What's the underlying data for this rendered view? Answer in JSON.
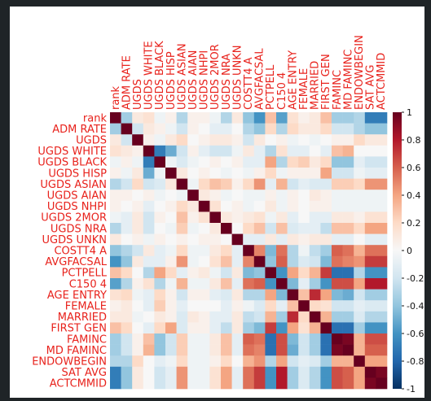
{
  "chart_data": {
    "type": "heatmap",
    "variables": [
      "rank",
      "ADM_RATE",
      "UGDS",
      "UGDS_WHITE",
      "UGDS_BLACK",
      "UGDS_HISP",
      "UGDS_ASIAN",
      "UGDS_AIAN",
      "UGDS_NHPI",
      "UGDS_2MOR",
      "UGDS_NRA",
      "UGDS_UNKN",
      "COSTT4_A",
      "AVGFACSAL",
      "PCTPELL",
      "C150_4",
      "AGE_ENTRY",
      "FEMALE",
      "MARRIED",
      "FIRST_GEN",
      "FAMINC",
      "MD_FAMINC",
      "ENDOWBEGIN",
      "SAT_AVG",
      "ACTCMMID"
    ],
    "x_tick_labels": [
      "rank",
      "ADM_RATE",
      "UGDS",
      "UGDS_WHITE",
      "UGDS_BLACK",
      "UGDS_HISP",
      "UGDS_ASIAN",
      "UGDS_AIAN",
      "UGDS_NHPI",
      "UGDS_2MOR",
      "UGDS_NRA",
      "UGDS_UNKN",
      "COSTT4_A",
      "AVGFACSAL",
      "PCTPELL",
      "C150_4",
      "AGE_ENTRY",
      "FEMALE",
      "MARRIED",
      "FIRST_GEN",
      "FAMINC",
      "MD_FAMINC",
      "ENDOWBEGIN",
      "SAT_AVG",
      "ACTCMMID"
    ],
    "y_tick_labels": [
      "rank",
      "ADM RATE",
      "UGDS",
      "UGDS WHITE",
      "UGDS BLACK",
      "UGDS HISP",
      "UGDS ASIAN",
      "UGDS AIAN",
      "UGDS NHPI",
      "UGDS 2MOR",
      "UGDS NRA",
      "UGDS UNKN",
      "COSTT4 A",
      "AVGFACSAL",
      "PCTPELL",
      "C150 4",
      "AGE ENTRY",
      "FEMALE",
      "MARRIED",
      "FIRST GEN",
      "FAMINC",
      "MD FAMINC",
      "ENDOWBEGIN",
      "SAT AVG",
      "ACTCMMID"
    ],
    "x_label_override": {
      "0": "rank",
      "1": "ADM RATE",
      "3": "UGDS WHITE",
      "4": "UGDS BLACK",
      "5": "UGDS HISP",
      "6": "UGDS ASIAN",
      "7": "UGDS AIAN",
      "8": "UGDS NHPI",
      "9": "UGDS 2MOR",
      "10": "UGDS NRA",
      "11": "UGDS UNKN",
      "12": "COSTT4 A",
      "15": "C150 4",
      "16": "AGE ENTRY",
      "18": "MARRIED",
      "19": "FIRST GEN",
      "20": "FAMINC",
      "21": "MD FAMINC",
      "23": "SAT AVG"
    },
    "values": [
      [
        1,
        -0.35,
        0.1,
        0.15,
        -0.05,
        0.05,
        -0.3,
        0.05,
        0.05,
        -0.05,
        -0.3,
        0.1,
        -0.4,
        -0.6,
        0.3,
        -0.55,
        0.15,
        0.05,
        0.1,
        0.3,
        -0.35,
        -0.35,
        -0.3,
        -0.7,
        -0.7
      ],
      [
        -0.35,
        1,
        -0.2,
        0.1,
        0.05,
        -0.05,
        -0.2,
        0.05,
        0.0,
        -0.1,
        -0.1,
        0.0,
        -0.3,
        -0.4,
        0.2,
        -0.3,
        0.2,
        0.1,
        0.1,
        0.2,
        -0.2,
        -0.2,
        -0.3,
        -0.4,
        -0.4
      ],
      [
        0.1,
        -0.2,
        1,
        0.05,
        -0.05,
        0.1,
        0.2,
        0.0,
        0.05,
        0.1,
        0.1,
        0.05,
        -0.2,
        0.1,
        0.0,
        0.05,
        -0.05,
        0.0,
        -0.05,
        0.0,
        0.05,
        0.05,
        0.2,
        0.1,
        0.1
      ],
      [
        0.15,
        0.1,
        0.05,
        1,
        -0.7,
        -0.5,
        -0.2,
        0.05,
        -0.1,
        -0.2,
        -0.2,
        -0.05,
        0.1,
        -0.1,
        -0.3,
        0.15,
        -0.1,
        -0.1,
        0.0,
        -0.1,
        0.3,
        0.35,
        0.0,
        0.0,
        0.0
      ],
      [
        -0.05,
        0.05,
        -0.05,
        -0.7,
        1,
        -0.05,
        -0.15,
        -0.05,
        0.0,
        0.05,
        0.0,
        0.05,
        -0.1,
        -0.1,
        0.4,
        -0.3,
        0.2,
        0.25,
        0.1,
        0.2,
        -0.4,
        -0.4,
        -0.1,
        -0.2,
        -0.2
      ],
      [
        0.05,
        -0.05,
        0.1,
        -0.5,
        -0.05,
        1,
        0.1,
        0.0,
        0.05,
        0.0,
        -0.05,
        0.0,
        -0.05,
        0.05,
        0.2,
        -0.05,
        0.05,
        0.05,
        0.05,
        0.4,
        -0.2,
        -0.2,
        -0.05,
        -0.1,
        -0.1
      ],
      [
        -0.3,
        -0.2,
        0.2,
        -0.2,
        -0.15,
        0.1,
        1,
        -0.05,
        0.2,
        0.3,
        0.25,
        0.05,
        0.2,
        0.45,
        -0.1,
        0.35,
        -0.2,
        -0.1,
        -0.15,
        -0.15,
        0.25,
        0.25,
        0.2,
        0.45,
        0.45
      ],
      [
        0.05,
        0.05,
        0.0,
        0.05,
        -0.05,
        0.0,
        -0.05,
        1,
        0.1,
        0.05,
        -0.05,
        0.0,
        -0.05,
        -0.05,
        0.05,
        -0.05,
        0.05,
        0.0,
        0.1,
        0.05,
        -0.05,
        -0.05,
        -0.05,
        -0.05,
        -0.05
      ],
      [
        0.05,
        0.0,
        0.05,
        -0.1,
        0.0,
        0.05,
        0.2,
        0.1,
        1,
        0.15,
        0.0,
        0.05,
        -0.05,
        0.0,
        0.1,
        -0.05,
        0.05,
        0.0,
        0.05,
        0.05,
        -0.05,
        -0.05,
        -0.05,
        -0.05,
        -0.05
      ],
      [
        -0.05,
        -0.1,
        0.1,
        -0.2,
        0.05,
        0.0,
        0.3,
        0.05,
        0.15,
        1,
        0.1,
        0.05,
        0.1,
        0.15,
        -0.05,
        0.1,
        -0.1,
        0.0,
        -0.1,
        -0.1,
        0.1,
        0.1,
        0.05,
        0.15,
        0.15
      ],
      [
        -0.3,
        -0.1,
        0.1,
        -0.2,
        0.0,
        -0.05,
        0.25,
        -0.05,
        0.0,
        0.1,
        1,
        0.0,
        0.2,
        0.3,
        -0.2,
        0.3,
        -0.15,
        -0.1,
        -0.1,
        -0.25,
        0.3,
        0.3,
        0.2,
        0.4,
        0.4
      ],
      [
        0.1,
        0.0,
        0.05,
        -0.05,
        0.05,
        0.0,
        0.05,
        0.0,
        0.05,
        0.05,
        0.0,
        1,
        -0.1,
        -0.1,
        0.1,
        -0.1,
        0.1,
        0.05,
        0.1,
        0.1,
        -0.1,
        -0.1,
        0.0,
        -0.1,
        -0.1
      ],
      [
        -0.4,
        -0.3,
        -0.2,
        0.1,
        -0.1,
        -0.05,
        0.2,
        -0.05,
        -0.05,
        0.1,
        0.2,
        -0.1,
        1,
        0.5,
        -0.45,
        0.55,
        -0.3,
        -0.05,
        -0.25,
        -0.35,
        0.6,
        0.55,
        0.35,
        0.55,
        0.55
      ],
      [
        -0.6,
        -0.4,
        0.1,
        -0.1,
        -0.1,
        0.05,
        0.45,
        -0.05,
        0.0,
        0.15,
        0.3,
        -0.1,
        0.5,
        1,
        -0.4,
        0.6,
        -0.3,
        -0.15,
        -0.2,
        -0.45,
        0.55,
        0.5,
        0.45,
        0.7,
        0.7
      ],
      [
        0.3,
        0.2,
        0.0,
        -0.3,
        0.4,
        0.2,
        -0.1,
        0.05,
        0.1,
        -0.05,
        -0.2,
        0.1,
        -0.45,
        -0.4,
        1,
        -0.6,
        0.4,
        0.2,
        0.35,
        0.7,
        -0.75,
        -0.75,
        -0.3,
        -0.6,
        -0.6
      ],
      [
        -0.55,
        -0.3,
        0.05,
        0.15,
        -0.3,
        -0.05,
        0.35,
        -0.05,
        -0.05,
        0.1,
        0.3,
        -0.1,
        0.55,
        0.6,
        -0.6,
        1,
        -0.45,
        -0.1,
        -0.35,
        -0.6,
        0.65,
        0.65,
        0.4,
        0.8,
        0.8
      ],
      [
        0.15,
        0.2,
        -0.05,
        -0.1,
        0.2,
        0.05,
        -0.2,
        0.05,
        0.05,
        -0.1,
        -0.15,
        0.1,
        -0.3,
        -0.3,
        0.4,
        -0.45,
        1,
        0.3,
        0.75,
        0.4,
        -0.45,
        -0.5,
        -0.2,
        -0.35,
        -0.35
      ],
      [
        0.05,
        0.1,
        0.0,
        -0.1,
        0.25,
        0.05,
        -0.1,
        0.0,
        0.0,
        0.0,
        -0.1,
        0.05,
        -0.05,
        -0.15,
        0.2,
        -0.1,
        0.3,
        1,
        0.2,
        0.15,
        -0.2,
        -0.2,
        -0.1,
        -0.15,
        -0.15
      ],
      [
        0.1,
        0.1,
        -0.05,
        0.0,
        0.1,
        0.05,
        -0.15,
        0.1,
        0.05,
        -0.1,
        -0.1,
        0.1,
        -0.25,
        -0.2,
        0.35,
        -0.35,
        0.75,
        0.2,
        1,
        0.35,
        -0.35,
        -0.35,
        -0.15,
        -0.3,
        -0.3
      ],
      [
        0.3,
        0.2,
        0.0,
        -0.1,
        0.2,
        0.4,
        -0.15,
        0.05,
        0.05,
        -0.1,
        -0.25,
        0.1,
        -0.35,
        -0.45,
        0.7,
        -0.6,
        0.4,
        0.15,
        0.35,
        1,
        -0.75,
        -0.75,
        -0.35,
        -0.6,
        -0.6
      ],
      [
        -0.35,
        -0.2,
        0.05,
        0.3,
        -0.4,
        -0.2,
        0.25,
        -0.05,
        -0.05,
        0.1,
        0.3,
        -0.1,
        0.6,
        0.55,
        -0.75,
        0.65,
        -0.45,
        -0.2,
        -0.35,
        -0.75,
        1,
        0.95,
        0.35,
        0.65,
        0.65
      ],
      [
        -0.35,
        -0.2,
        0.05,
        0.35,
        -0.4,
        -0.2,
        0.25,
        -0.05,
        -0.05,
        0.1,
        0.3,
        -0.1,
        0.55,
        0.5,
        -0.75,
        0.65,
        -0.5,
        -0.2,
        -0.35,
        -0.75,
        0.95,
        1,
        0.35,
        0.6,
        0.6
      ],
      [
        -0.3,
        -0.3,
        0.2,
        0.0,
        -0.1,
        -0.05,
        0.2,
        -0.05,
        -0.05,
        0.05,
        0.2,
        0.0,
        0.35,
        0.45,
        -0.3,
        0.4,
        -0.2,
        -0.1,
        -0.15,
        -0.35,
        0.35,
        0.35,
        1,
        0.4,
        0.4
      ],
      [
        -0.7,
        -0.4,
        0.1,
        0.0,
        -0.2,
        -0.1,
        0.45,
        -0.05,
        -0.05,
        0.15,
        0.4,
        -0.1,
        0.55,
        0.7,
        -0.6,
        0.8,
        -0.35,
        -0.15,
        -0.3,
        -0.6,
        0.65,
        0.6,
        0.4,
        1,
        0.95
      ],
      [
        -0.7,
        -0.4,
        0.1,
        0.0,
        -0.2,
        -0.1,
        0.45,
        -0.05,
        -0.05,
        0.15,
        0.4,
        -0.1,
        0.55,
        0.7,
        -0.6,
        0.8,
        -0.35,
        -0.15,
        -0.3,
        -0.6,
        0.65,
        0.6,
        0.4,
        0.95,
        1
      ]
    ],
    "colorbar": {
      "range": [
        -1,
        1
      ],
      "ticks": [
        1,
        0.8,
        0.6,
        0.4,
        0.2,
        0,
        -0.2,
        -0.4,
        -0.6,
        -0.8,
        -1
      ],
      "tick_labels": [
        "1",
        "0.8",
        "0.6",
        "0.4",
        "0.2",
        "0",
        "-0.2",
        "-0.4",
        "-0.6",
        "-0.8",
        "-1"
      ],
      "colors": [
        "#67001f",
        "#b2182b",
        "#d6604d",
        "#f4a582",
        "#fddbc7",
        "#f7f7f7",
        "#d1e5f0",
        "#92c5de",
        "#4393c3",
        "#2166ac",
        "#053061"
      ]
    },
    "label_color": "#e8221c",
    "background": "#1f2427"
  }
}
